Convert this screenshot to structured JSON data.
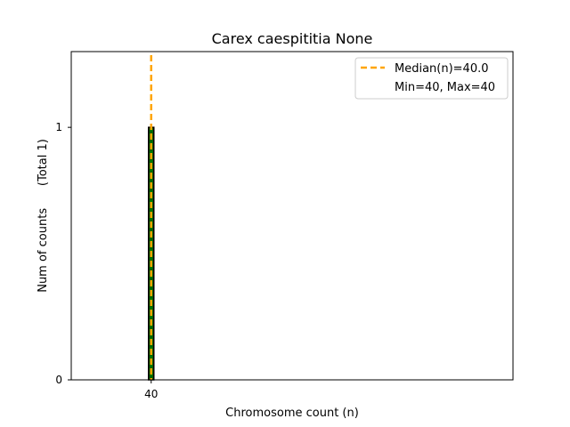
{
  "chart_data": {
    "type": "bar",
    "title": "Carex caespititia None",
    "xlabel": "Chromosome count (n)",
    "ylabel": "Num of counts      (Total 1)",
    "x_ticks": [
      40
    ],
    "y_ticks": [
      0,
      1
    ],
    "ylim": [
      0,
      1.3
    ],
    "xlim": [
      38.1,
      48.6
    ],
    "bars": [
      {
        "x": 40,
        "value": 1
      }
    ],
    "median": 40.0,
    "legend": {
      "position": "upper right",
      "entries": [
        "Median(n)=40.0",
        "Min=40, Max=40"
      ]
    },
    "colors": {
      "bar_edge": "#000000",
      "bar_fill": "#006400",
      "median_line": "#FFA500",
      "bar_dots": "#008000"
    }
  }
}
